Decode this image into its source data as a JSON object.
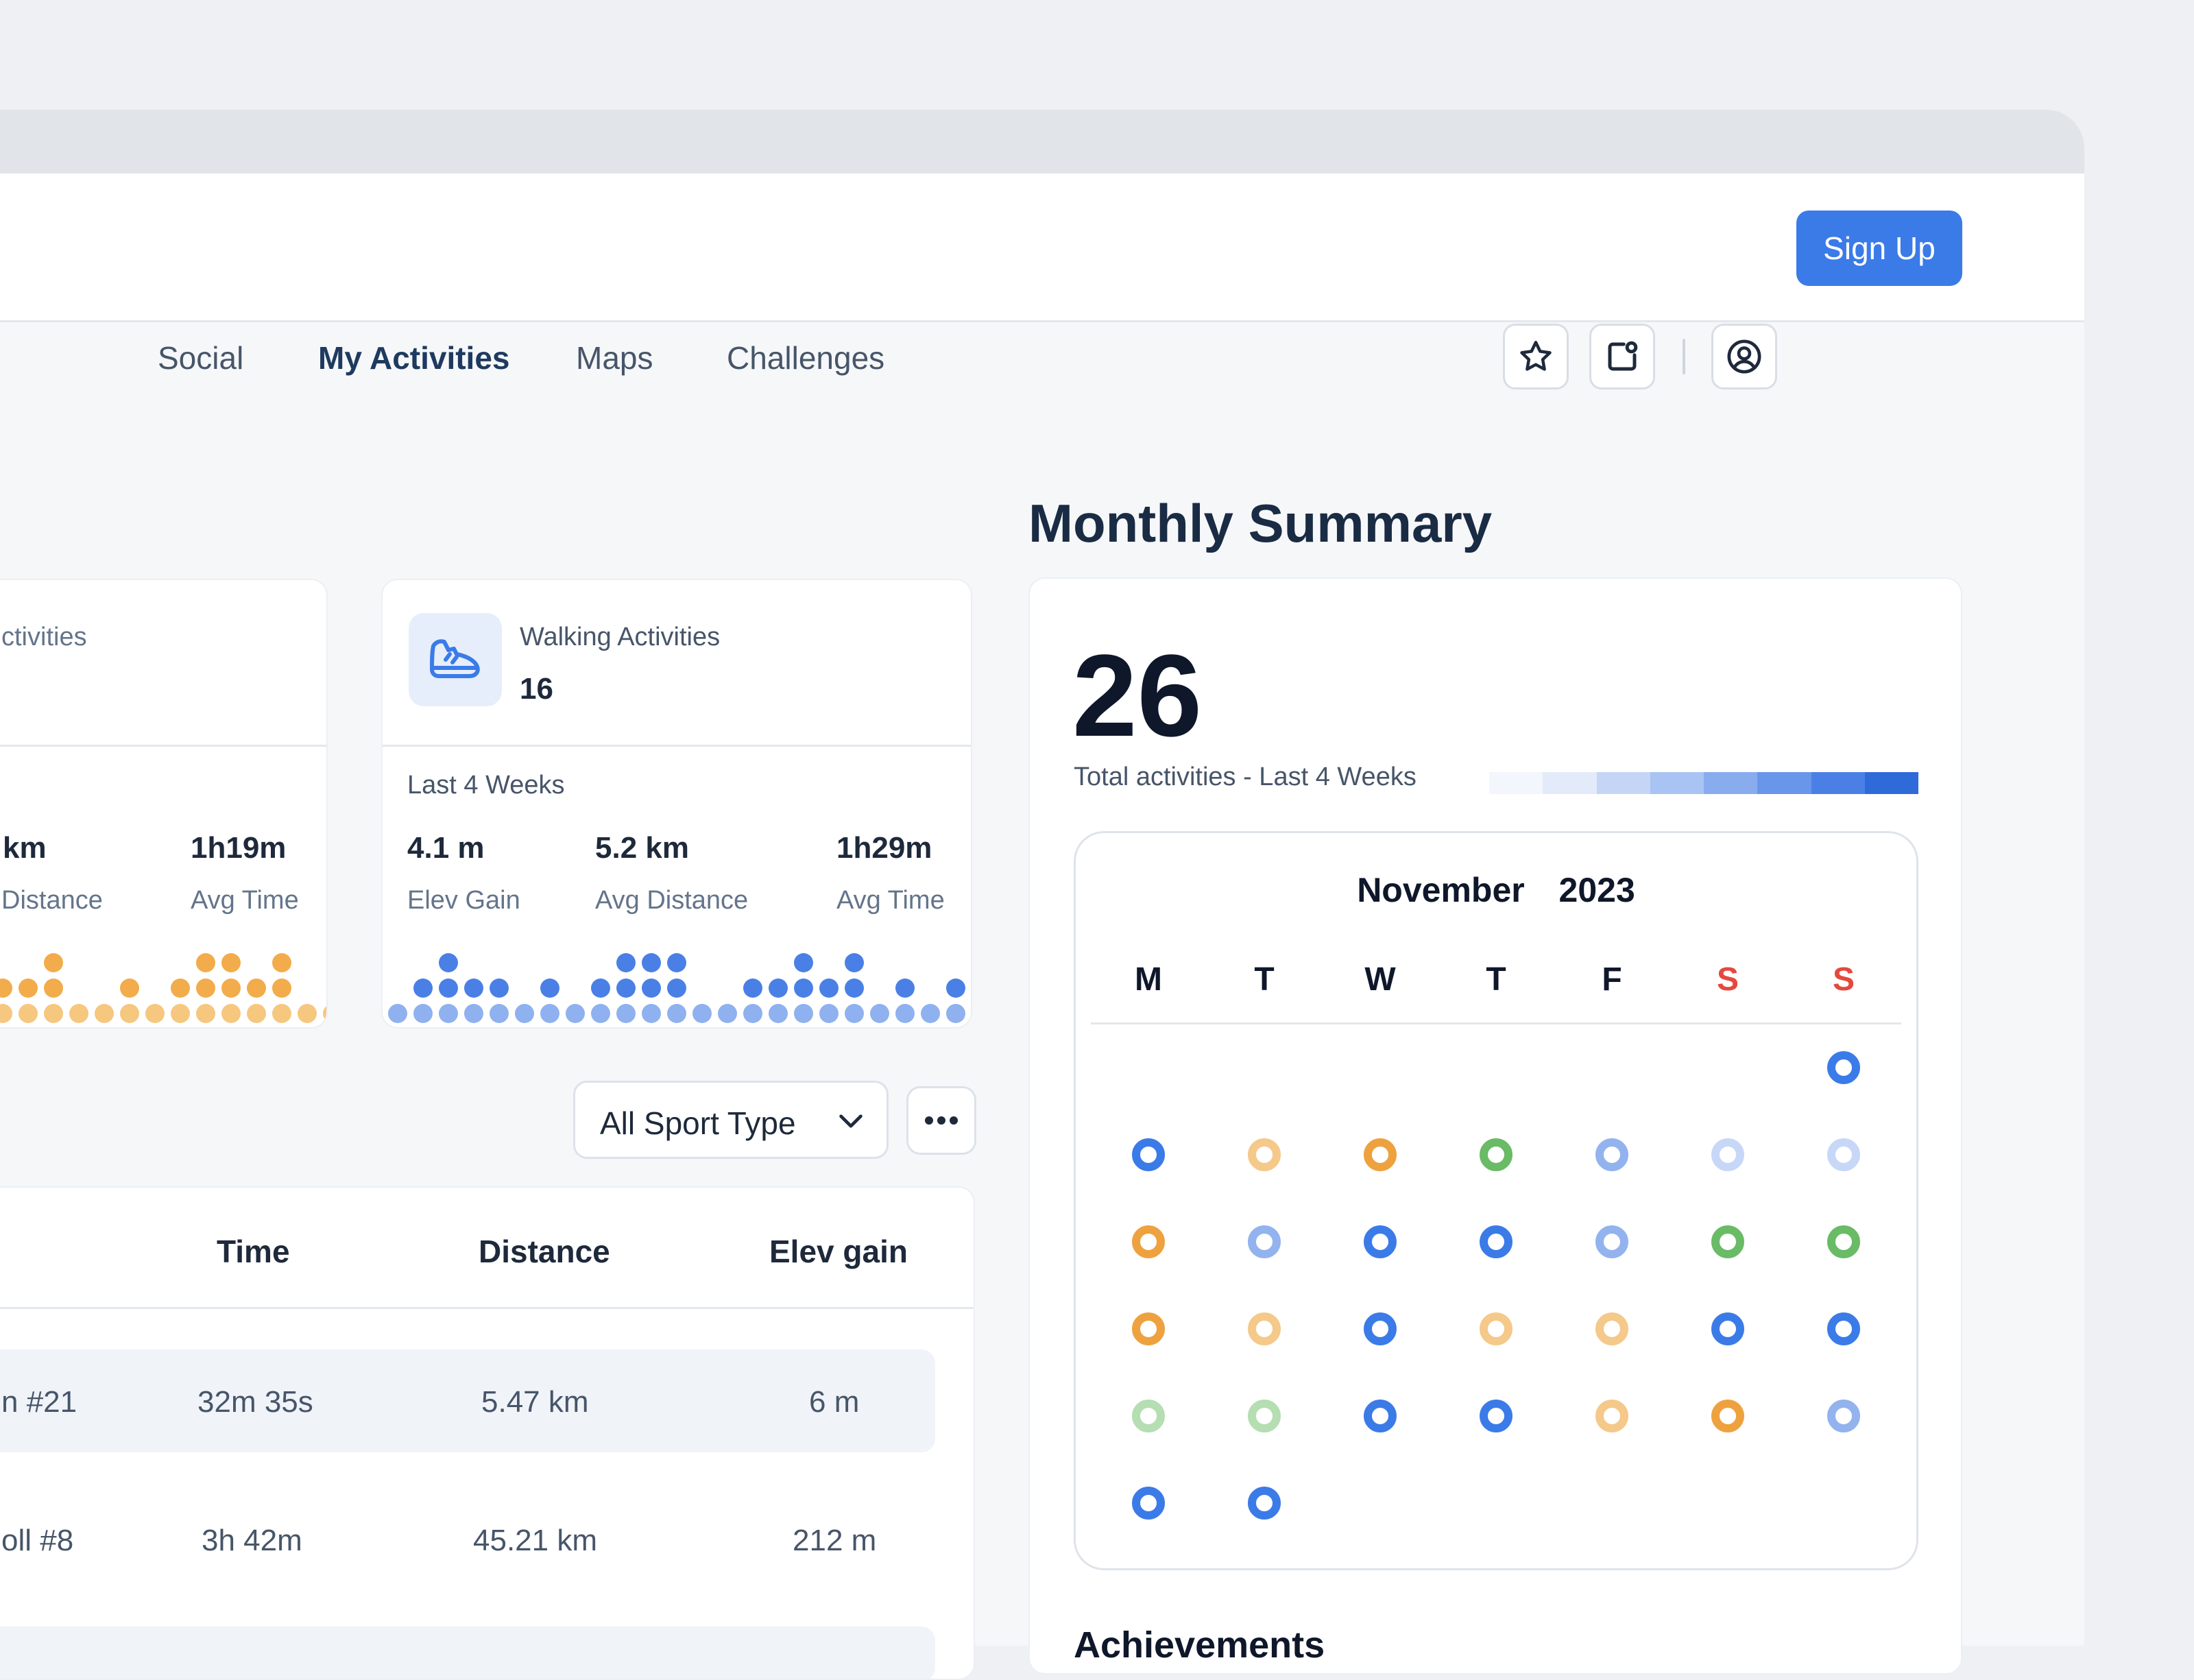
{
  "nav": {
    "items": [
      {
        "label": "Social"
      },
      {
        "label": "My Activities",
        "active": true
      },
      {
        "label": "Maps"
      },
      {
        "label": "Challenges"
      }
    ],
    "signup_label": "Sign Up"
  },
  "left_card": {
    "title_partial": "ctivities",
    "stats": [
      {
        "value": "km",
        "label": "Distance"
      },
      {
        "value": "1h19m",
        "label": "Avg Time"
      }
    ]
  },
  "walking_card": {
    "title": "Walking Activities",
    "count": "16",
    "period": "Last 4 Weeks",
    "stats": [
      {
        "value": "4.1 m",
        "label": "Elev Gain"
      },
      {
        "value": "5.2 km",
        "label": "Avg Distance"
      },
      {
        "value": "1h29m",
        "label": "Avg Time"
      }
    ]
  },
  "filter": {
    "selected": "All Sport Type"
  },
  "table": {
    "headers": [
      "Time",
      "Distance",
      "Elev gain"
    ],
    "rows": [
      {
        "name": "n #21",
        "time": "32m 35s",
        "distance": "5.47 km",
        "elev": "6 m"
      },
      {
        "name": "oll #8",
        "time": "3h 42m",
        "distance": "45.21 km",
        "elev": "212 m"
      }
    ]
  },
  "summary": {
    "title": "Monthly Summary",
    "total": "26",
    "total_label": "Total activities - Last 4 Weeks",
    "legend_colors": [
      "#f3f6fc",
      "#e3ebfa",
      "#c4d5f6",
      "#a9c3f3",
      "#89acef",
      "#6896ea",
      "#4a80e6",
      "#2f6ad9"
    ],
    "calendar": {
      "month": "November",
      "year": "2023",
      "weekdays": [
        "M",
        "T",
        "W",
        "T",
        "F",
        "S",
        "S"
      ],
      "weekend_color": "#e5483d",
      "weeks": [
        [
          null,
          null,
          null,
          null,
          null,
          null,
          "#3b7be8"
        ],
        [
          "#3b7be8",
          "#f4c98a",
          "#eea23f",
          "#69bb66",
          "#93b3ef",
          "#c7d7f7",
          "#c7d7f7"
        ],
        [
          "#eea23f",
          "#93b3ef",
          "#3b7be8",
          "#3b7be8",
          "#93b3ef",
          "#69bb66",
          "#69bb66"
        ],
        [
          "#eea23f",
          "#f4c98a",
          "#3b7be8",
          "#f4c98a",
          "#f4c98a",
          "#3b7be8",
          "#3b7be8"
        ],
        [
          "#b5deb3",
          "#b5deb3",
          "#3b7be8",
          "#3b7be8",
          "#f4c98a",
          "#eea23f",
          "#93b3ef"
        ],
        [
          "#3b7be8",
          "#3b7be8",
          null,
          null,
          null,
          null,
          null
        ]
      ]
    },
    "achievements_label": "Achievements"
  },
  "colors": {
    "accent": "#3b7be8",
    "orange_dot": "#f2ac4b",
    "blue_dot_dark": "#4a80e6",
    "blue_dot_light": "#8fb1ef"
  }
}
